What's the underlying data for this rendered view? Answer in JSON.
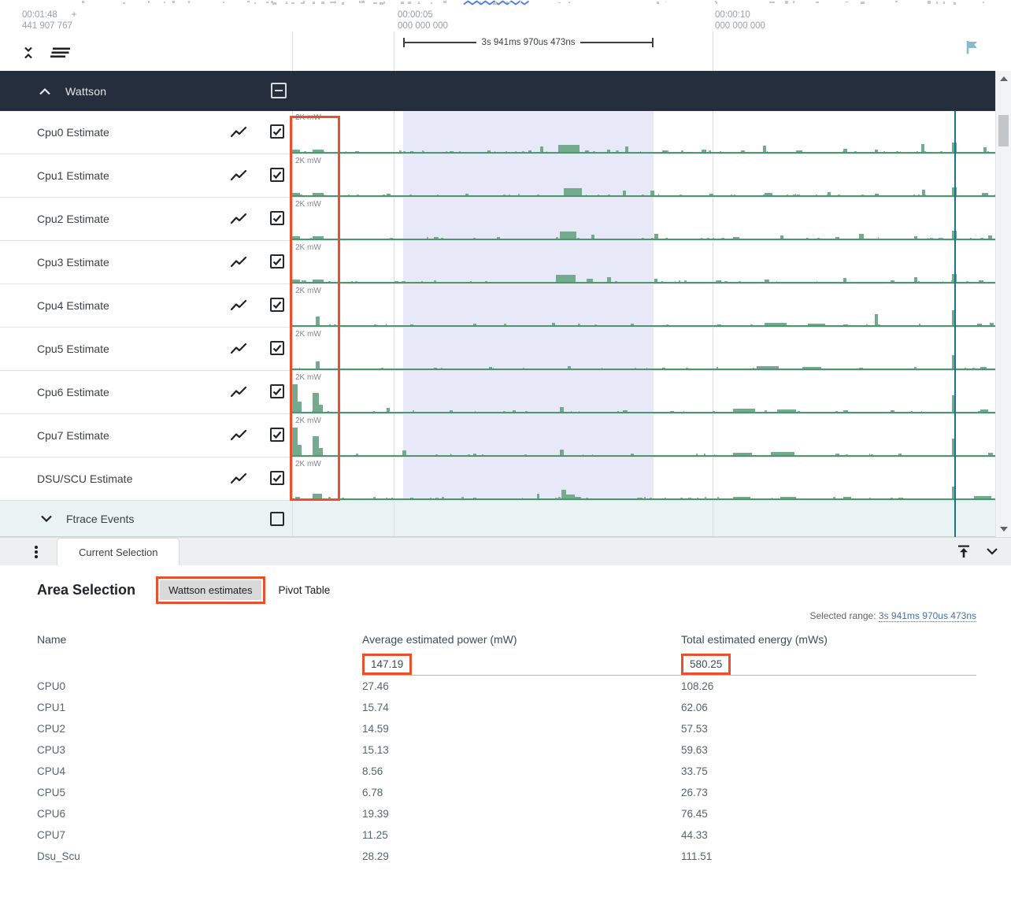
{
  "colors": {
    "accent_orange": "#e8512c",
    "track_green": "#74ab8e",
    "baseline_green": "#4e9572",
    "selection_lavender": "rgba(95,105,217,0.15)",
    "marker_teal": "#16788a",
    "header_dark": "#242e3c",
    "flag_blue": "#8cb9c9",
    "link_blue": "#4472a8"
  },
  "ruler": {
    "origin_time": "00:01:48",
    "origin_plus": "+",
    "origin_sub": "441 907 767",
    "ticks": [
      {
        "time": "00:00:05",
        "sub": "000 000 000"
      },
      {
        "time": "00:00:10",
        "sub": "000 000 000"
      }
    ],
    "measurement": "3s 941ms 970us 473ns"
  },
  "group": {
    "label": "Wattson"
  },
  "tracks": [
    {
      "name": "Cpu0 Estimate",
      "scale": "2K mW",
      "checked": true,
      "noise": 170,
      "spikes": [
        [
          0,
          10,
          5
        ],
        [
          26,
          14,
          5
        ],
        [
          80,
          5,
          3
        ],
        [
          150,
          4,
          3
        ],
        [
          200,
          5,
          3
        ],
        [
          248,
          4,
          4
        ],
        [
          300,
          4,
          4
        ],
        [
          315,
          4,
          9
        ],
        [
          338,
          27,
          11
        ],
        [
          372,
          5,
          4
        ],
        [
          400,
          4,
          5
        ],
        [
          423,
          4,
          9
        ],
        [
          470,
          6,
          4
        ],
        [
          520,
          6,
          5
        ],
        [
          570,
          5,
          4
        ],
        [
          598,
          4,
          10
        ],
        [
          640,
          8,
          4
        ],
        [
          700,
          5,
          6
        ],
        [
          740,
          4,
          5
        ],
        [
          799,
          4,
          12
        ],
        [
          838,
          6,
          14
        ],
        [
          878,
          4,
          8
        ],
        [
          896,
          6,
          7
        ]
      ]
    },
    {
      "name": "Cpu1 Estimate",
      "scale": "2K mW",
      "checked": true,
      "noise": 150,
      "spikes": [
        [
          0,
          10,
          5
        ],
        [
          26,
          14,
          5
        ],
        [
          120,
          5,
          4
        ],
        [
          220,
          4,
          4
        ],
        [
          345,
          23,
          11
        ],
        [
          420,
          4,
          8
        ],
        [
          455,
          5,
          8
        ],
        [
          530,
          5,
          4
        ],
        [
          600,
          10,
          5
        ],
        [
          680,
          4,
          6
        ],
        [
          740,
          5,
          4
        ],
        [
          800,
          4,
          9
        ],
        [
          838,
          6,
          12
        ],
        [
          876,
          8,
          5
        ]
      ]
    },
    {
      "name": "Cpu2 Estimate",
      "scale": "2K mW",
      "checked": true,
      "noise": 150,
      "spikes": [
        [
          0,
          10,
          5
        ],
        [
          26,
          14,
          5
        ],
        [
          180,
          6,
          4
        ],
        [
          260,
          4,
          4
        ],
        [
          340,
          21,
          11
        ],
        [
          380,
          4,
          7
        ],
        [
          460,
          5,
          8
        ],
        [
          560,
          8,
          4
        ],
        [
          620,
          4,
          6
        ],
        [
          690,
          5,
          4
        ],
        [
          720,
          6,
          8
        ],
        [
          790,
          4,
          5
        ],
        [
          838,
          6,
          12
        ],
        [
          884,
          5,
          6
        ]
      ]
    },
    {
      "name": "Cpu3 Estimate",
      "scale": "2K mW",
      "checked": true,
      "noise": 150,
      "spikes": [
        [
          0,
          10,
          5
        ],
        [
          26,
          14,
          5
        ],
        [
          130,
          5,
          3
        ],
        [
          335,
          25,
          11
        ],
        [
          374,
          8,
          6
        ],
        [
          400,
          5,
          8
        ],
        [
          460,
          4,
          6
        ],
        [
          540,
          5,
          4
        ],
        [
          600,
          6,
          5
        ],
        [
          700,
          4,
          7
        ],
        [
          760,
          5,
          4
        ],
        [
          790,
          4,
          8
        ],
        [
          838,
          6,
          12
        ],
        [
          872,
          6,
          4
        ]
      ]
    },
    {
      "name": "Cpu4 Estimate",
      "scale": "2K mW",
      "checked": true,
      "noise": 90,
      "spikes": [
        [
          30,
          5,
          13
        ],
        [
          150,
          4,
          3
        ],
        [
          230,
          4,
          4
        ],
        [
          330,
          4,
          5
        ],
        [
          430,
          4,
          4
        ],
        [
          540,
          5,
          3
        ],
        [
          600,
          28,
          5
        ],
        [
          655,
          22,
          4
        ],
        [
          700,
          6,
          3
        ],
        [
          740,
          4,
          16
        ],
        [
          838,
          5,
          21
        ],
        [
          870,
          6,
          4
        ],
        [
          886,
          5,
          5
        ]
      ]
    },
    {
      "name": "Cpu5 Estimate",
      "scale": "2K mW",
      "checked": true,
      "noise": 90,
      "spikes": [
        [
          30,
          5,
          11
        ],
        [
          180,
          4,
          3
        ],
        [
          250,
          4,
          4
        ],
        [
          350,
          4,
          5
        ],
        [
          470,
          4,
          3
        ],
        [
          590,
          28,
          5
        ],
        [
          648,
          24,
          4
        ],
        [
          720,
          5,
          3
        ],
        [
          838,
          5,
          19
        ],
        [
          874,
          8,
          4
        ]
      ]
    },
    {
      "name": "Cpu6 Estimate",
      "scale": "2K mW",
      "checked": true,
      "noise": 120,
      "spikes": [
        [
          0,
          7,
          37
        ],
        [
          7,
          5,
          15
        ],
        [
          26,
          8,
          26
        ],
        [
          34,
          5,
          11
        ],
        [
          120,
          4,
          7
        ],
        [
          200,
          4,
          4
        ],
        [
          280,
          4,
          4
        ],
        [
          340,
          5,
          8
        ],
        [
          420,
          6,
          4
        ],
        [
          480,
          5,
          3
        ],
        [
          560,
          28,
          6
        ],
        [
          616,
          24,
          5
        ],
        [
          700,
          6,
          4
        ],
        [
          760,
          5,
          4
        ],
        [
          838,
          5,
          23
        ],
        [
          874,
          10,
          5
        ]
      ]
    },
    {
      "name": "Cpu7 Estimate",
      "scale": "2K mW",
      "checked": true,
      "noise": 120,
      "spikes": [
        [
          0,
          7,
          37
        ],
        [
          7,
          5,
          15
        ],
        [
          26,
          8,
          26
        ],
        [
          34,
          5,
          11
        ],
        [
          140,
          5,
          8
        ],
        [
          230,
          4,
          4
        ],
        [
          340,
          5,
          9
        ],
        [
          430,
          4,
          4
        ],
        [
          560,
          24,
          5
        ],
        [
          608,
          30,
          6
        ],
        [
          690,
          5,
          4
        ],
        [
          770,
          4,
          4
        ],
        [
          838,
          5,
          23
        ],
        [
          884,
          6,
          5
        ]
      ]
    },
    {
      "name": "DSU/SCU Estimate",
      "scale": "2K mW",
      "checked": true,
      "noise": 130,
      "spikes": [
        [
          4,
          6,
          4
        ],
        [
          26,
          12,
          8
        ],
        [
          150,
          4,
          3
        ],
        [
          230,
          4,
          3
        ],
        [
          311,
          3,
          8
        ],
        [
          342,
          6,
          13
        ],
        [
          348,
          11,
          7
        ],
        [
          359,
          8,
          4
        ],
        [
          440,
          5,
          3
        ],
        [
          560,
          22,
          4
        ],
        [
          620,
          20,
          4
        ],
        [
          700,
          10,
          4
        ],
        [
          770,
          6,
          3
        ],
        [
          838,
          5,
          17
        ],
        [
          866,
          22,
          5
        ]
      ]
    }
  ],
  "ftrace": {
    "label": "Ftrace Events",
    "checked": false
  },
  "tabbar": {
    "active_tab": "Current Selection"
  },
  "panel": {
    "title": "Area Selection",
    "tab_wattson": "Wattson estimates",
    "tab_pivot": "Pivot Table",
    "range_label": "Selected range:",
    "range_value": "3s 941ms 970us 473ns",
    "table": {
      "columns": [
        "Name",
        "Average estimated power (mW)",
        "Total estimated energy (mWs)"
      ],
      "totals": {
        "avg_power": "147.19",
        "total_energy": "580.25"
      },
      "rows": [
        {
          "name": "CPU0",
          "avg": "27.46",
          "total": "108.26"
        },
        {
          "name": "CPU1",
          "avg": "15.74",
          "total": "62.06"
        },
        {
          "name": "CPU2",
          "avg": "14.59",
          "total": "57.53"
        },
        {
          "name": "CPU3",
          "avg": "15.13",
          "total": "59.63"
        },
        {
          "name": "CPU4",
          "avg": "8.56",
          "total": "33.75"
        },
        {
          "name": "CPU5",
          "avg": "6.78",
          "total": "26.73"
        },
        {
          "name": "CPU6",
          "avg": "19.39",
          "total": "76.45"
        },
        {
          "name": "CPU7",
          "avg": "11.25",
          "total": "44.33"
        },
        {
          "name": "Dsu_Scu",
          "avg": "28.29",
          "total": "111.51"
        }
      ]
    }
  }
}
